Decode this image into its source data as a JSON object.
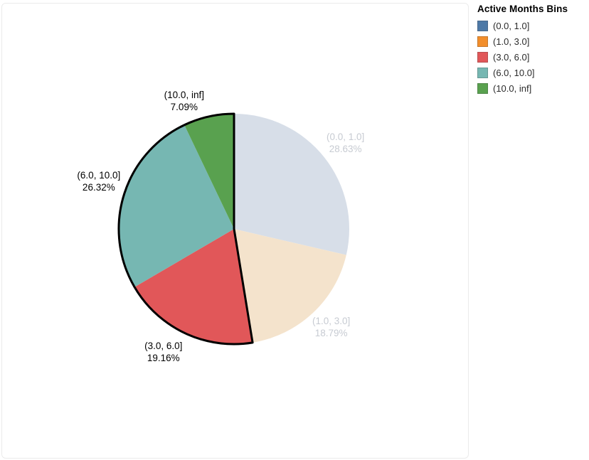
{
  "legend": {
    "title": "Active Months Bins",
    "items": [
      {
        "label": "(0.0, 1.0]",
        "color": "#4e79a7"
      },
      {
        "label": "(1.0, 3.0]",
        "color": "#f28e2b"
      },
      {
        "label": "(3.0, 6.0]",
        "color": "#e15759"
      },
      {
        "label": "(6.0, 10.0]",
        "color": "#76b7b2"
      },
      {
        "label": "(10.0, inf]",
        "color": "#59a14f"
      }
    ]
  },
  "chart_data": {
    "type": "pie",
    "title": "Active Months Bins",
    "categories": [
      "(0.0, 1.0]",
      "(1.0, 3.0]",
      "(3.0, 6.0]",
      "(6.0, 10.0]",
      "(10.0, inf]"
    ],
    "values": [
      28.63,
      18.79,
      19.16,
      26.32,
      7.09
    ],
    "percent_labels": [
      "28.63%",
      "18.79%",
      "19.16%",
      "26.32%",
      "7.09%"
    ],
    "slice_colors": [
      "#d7dee8",
      "#f4e3cc",
      "#e15759",
      "#76b7b2",
      "#59a14f"
    ],
    "full_colors": [
      "#4e79a7",
      "#f28e2b",
      "#e15759",
      "#76b7b2",
      "#59a14f"
    ],
    "faded": [
      true,
      true,
      false,
      false,
      false
    ],
    "selected": [
      false,
      false,
      true,
      true,
      true
    ],
    "selection_outline_color": "#000000",
    "label_text_color": "#000000",
    "faded_label_text_color": "#c7cbd2",
    "start_angle_deg": 0,
    "direction": "clockwise",
    "legend_position": "top-right",
    "grid": false
  }
}
